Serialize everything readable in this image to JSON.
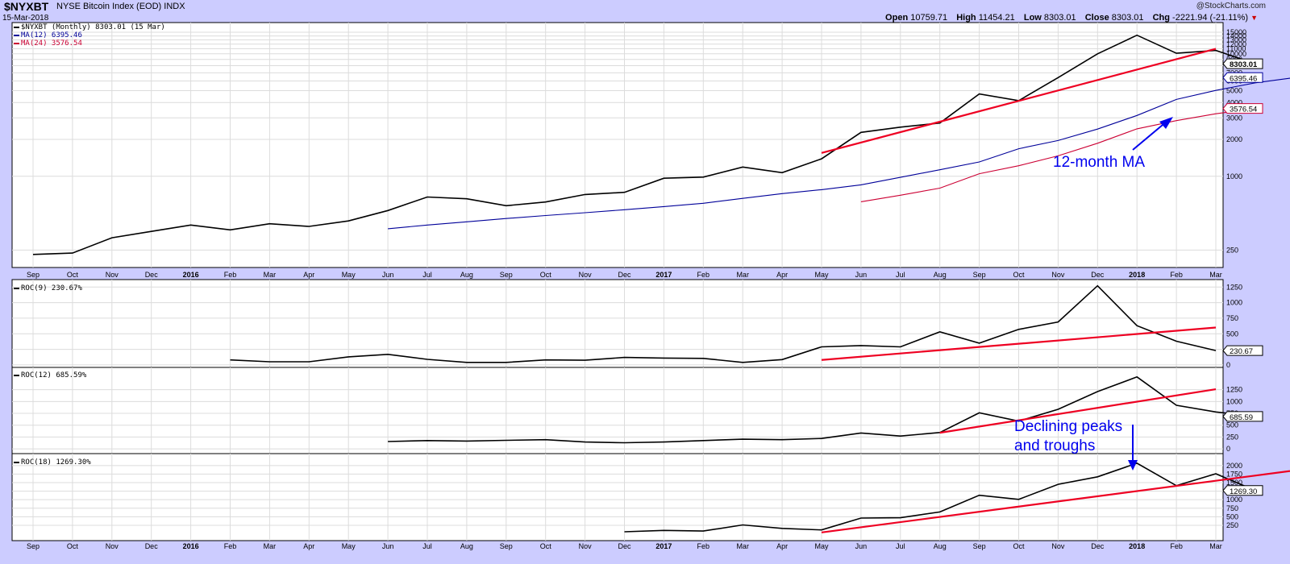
{
  "header": {
    "symbol": "$NYXBT",
    "description": "NYSE Bitcoin Index (EOD)  INDX",
    "date": "15-Mar-2018",
    "copyright": "@StockCharts.com",
    "open_label": "Open",
    "open": "10759.71",
    "high_label": "High",
    "high": "11454.21",
    "low_label": "Low",
    "low": "8303.01",
    "close_label": "Close",
    "close": "8303.01",
    "chg_label": "Chg",
    "chg": "-2221.94 (-21.11%)",
    "chg_icon": "down-triangle-icon"
  },
  "annotations": {
    "ma_label": "12-month MA",
    "peaks_line1": "Declining peaks",
    "peaks_line2": "and troughs"
  },
  "colors": {
    "background": "#ccccff",
    "panel": "#ffffff",
    "price": "#000000",
    "ma12": "#000099",
    "ma24": "#cc0033",
    "trendline": "#ee0022",
    "annotation": "#0000ee"
  },
  "x_labels": [
    "Sep",
    "Oct",
    "Nov",
    "Dec",
    "2016",
    "Feb",
    "Mar",
    "Apr",
    "May",
    "Jun",
    "Jul",
    "Aug",
    "Sep",
    "Oct",
    "Nov",
    "Dec",
    "2017",
    "Feb",
    "Mar",
    "Apr",
    "May",
    "Jun",
    "Jul",
    "Aug",
    "Sep",
    "Oct",
    "Nov",
    "Dec",
    "2018",
    "Feb",
    "Mar"
  ],
  "bold_x_labels": [
    "2016",
    "2017",
    "2018"
  ],
  "chart_data": [
    {
      "type": "line",
      "panel": "price",
      "scale": "log",
      "ylim": [
        180,
        18000
      ],
      "yticks": [
        250,
        1000,
        2000,
        3000,
        4000,
        5000,
        6000,
        7000,
        8000,
        9000,
        10000,
        11000,
        12000,
        13000,
        14000,
        15000
      ],
      "legend_placement": "top-left",
      "series": [
        {
          "name": "$NYXBT (Monthly) 8303.01 (15 Mar)",
          "legend": "$NYXBT (Monthly) 8303.01 (15 Mar)",
          "color_key": "price",
          "start_index": 0,
          "values": [
            230,
            236,
            315,
            355,
            400,
            365,
            410,
            390,
            432,
            525,
            678,
            655,
            575,
            617,
            710,
            740,
            965,
            985,
            1190,
            1070,
            1390,
            2285,
            2520,
            2720,
            4700,
            4150,
            6400,
            10000,
            14200,
            10100,
            10650,
            8303.01
          ]
        },
        {
          "name": "MA(12) 6395.46",
          "legend": "MA(12) 6395.46",
          "color_key": "ma12",
          "start_index": 9,
          "values": [
            373,
            400,
            425,
            452,
            478,
            504,
            533,
            566,
            602,
            660,
            722,
            778,
            852,
            980,
            1130,
            1310,
            1680,
            1960,
            2430,
            3140,
            4240,
            5030,
            5800,
            6395.46
          ]
        },
        {
          "name": "MA(24) 3576.54",
          "legend": "MA(24) 3576.54",
          "color_key": "ma24",
          "start_index": 21,
          "values": [
            620,
            700,
            800,
            1050,
            1220,
            1470,
            1860,
            2440,
            2850,
            3240,
            3576.54
          ]
        }
      ],
      "trendlines": [
        {
          "from": [
            20,
            1550
          ],
          "to": [
            30,
            11000
          ]
        }
      ],
      "value_tags": [
        {
          "text": "8303.01",
          "value": 8303.01,
          "style": "price"
        },
        {
          "text": "6395.46",
          "value": 6395.46,
          "style": "ma12"
        },
        {
          "text": "3576.54",
          "value": 3576.54,
          "style": "ma24"
        }
      ]
    },
    {
      "type": "line",
      "panel": "ROC(9)",
      "ylim": [
        -40,
        1370
      ],
      "yticks": [
        0,
        250,
        500,
        750,
        1000,
        1250
      ],
      "legend_placement": "top-left",
      "series": [
        {
          "name": "ROC(9) 230.67%",
          "legend": "ROC(9) 230.67%",
          "start_index": 5,
          "values": [
            80,
            50,
            50,
            130,
            170,
            90,
            40,
            40,
            80,
            75,
            120,
            110,
            105,
            40,
            85,
            290,
            310,
            290,
            530,
            350,
            570,
            690,
            1270,
            630,
            380,
            230.67
          ]
        }
      ],
      "trendlines": [
        {
          "from": [
            20,
            80
          ],
          "to": [
            30,
            600
          ]
        }
      ],
      "value_tags": [
        {
          "text": "230.67",
          "value": 230.67
        }
      ]
    },
    {
      "type": "line",
      "panel": "ROC(12)",
      "ylim": [
        -100,
        1720
      ],
      "yticks": [
        0,
        250,
        500,
        750,
        1000,
        1250
      ],
      "legend_placement": "top-left",
      "series": [
        {
          "name": "ROC(12) 685.59%",
          "legend": "ROC(12) 685.59%",
          "start_index": 9,
          "values": [
            155,
            175,
            165,
            180,
            195,
            145,
            130,
            145,
            175,
            205,
            195,
            220,
            335,
            270,
            345,
            760,
            585,
            835,
            1210,
            1520,
            920,
            780,
            685.59
          ]
        }
      ],
      "trendlines": [
        {
          "from": [
            23,
            340
          ],
          "to": [
            30,
            1260
          ]
        }
      ],
      "value_tags": [
        {
          "text": "685.59",
          "value": 685.59
        }
      ]
    },
    {
      "type": "line",
      "panel": "ROC(18)",
      "ylim": [
        -200,
        2350
      ],
      "yticks": [
        250,
        500,
        750,
        1000,
        1250,
        1500,
        1750,
        2000
      ],
      "legend_placement": "top-left",
      "series": [
        {
          "name": "ROC(18) 1269.30%",
          "legend": "ROC(18) 1269.30%",
          "start_index": 15,
          "values": [
            60,
            100,
            80,
            260,
            160,
            115,
            460,
            470,
            640,
            1130,
            1010,
            1450,
            1670,
            2070,
            1410,
            1760,
            1269.3
          ]
        }
      ],
      "trendlines": [
        {
          "from": [
            20,
            40
          ],
          "to": [
            32.5,
            1840
          ]
        }
      ],
      "value_tags": [
        {
          "text": "1269.30",
          "value": 1269.3
        }
      ]
    }
  ]
}
